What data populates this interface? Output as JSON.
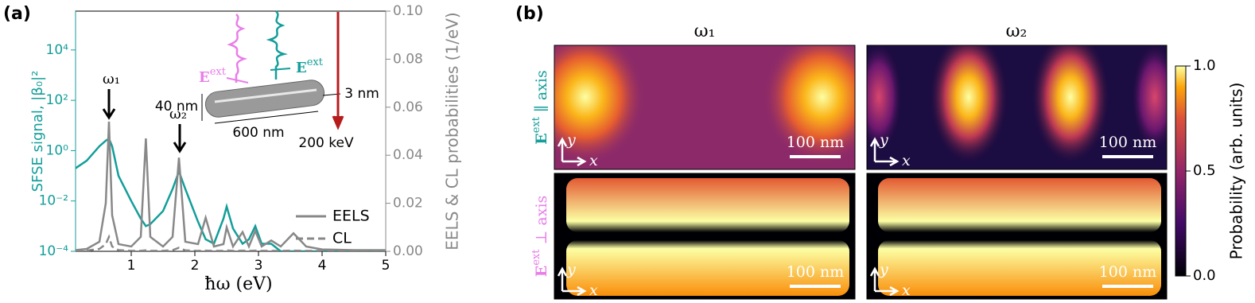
{
  "chart_data": [
    {
      "type": "line",
      "panel_label": "(a)",
      "xlabel": "ħω (eV)",
      "ylabel": "SFSE signal, |β₀|²",
      "y2label": "EELS & CL probabilities (1/eV)",
      "xlim": [
        0.125,
        5
      ],
      "xticks": [
        1,
        2,
        3,
        4,
        5
      ],
      "yscale": "log",
      "ylim": [
        0.0001,
        350000
      ],
      "yticks": [
        {
          "value": 0.0001,
          "label": "10⁻⁴"
        },
        {
          "value": 0.01,
          "label": "10⁻²"
        },
        {
          "value": 1,
          "label": "10⁰"
        },
        {
          "value": 100,
          "label": "10²"
        },
        {
          "value": 10000,
          "label": "10⁴"
        }
      ],
      "y2lim": [
        0,
        0.1
      ],
      "y2ticks": [
        {
          "value": 0,
          "label": "0.00"
        },
        {
          "value": 0.02,
          "label": "0.02"
        },
        {
          "value": 0.04,
          "label": "0.04"
        },
        {
          "value": 0.06,
          "label": "0.06"
        },
        {
          "value": 0.08,
          "label": "0.08"
        },
        {
          "value": 0.1,
          "label": "0.10"
        }
      ],
      "x": [
        0.125,
        0.3,
        0.5,
        0.6,
        0.65,
        0.7,
        0.8,
        1.0,
        1.15,
        1.23,
        1.3,
        1.5,
        1.65,
        1.75,
        1.85,
        2.05,
        2.17,
        2.3,
        2.45,
        2.5,
        2.6,
        2.75,
        2.85,
        2.95,
        3.05,
        3.2,
        3.35,
        3.55,
        3.75,
        4.0,
        4.5,
        5.0
      ],
      "series": [
        {
          "color": "#139e99",
          "axis": "y",
          "style": "solid",
          "values": [
            0.2,
            0.4,
            1.5,
            2.5,
            3,
            1.5,
            0.1,
            0.01,
            0.002,
            0.001,
            0.0012,
            0.004,
            0.03,
            0.15,
            0.03,
            0.0015,
            0.0003,
            0.0002,
            0.002,
            0.006,
            0.0008,
            0.0002,
            0.0003,
            0.001,
            0.0002,
            0.0002,
            0.0001,
            0.0001,
            0.0001,
            0.0001,
            0.0001,
            0.0001
          ]
        },
        {
          "name": "EELS",
          "color": "#888888",
          "axis": "y2",
          "style": "solid",
          "values": [
            0.0005,
            0.001,
            0.004,
            0.02,
            0.054,
            0.015,
            0.003,
            0.002,
            0.006,
            0.047,
            0.006,
            0.002,
            0.006,
            0.039,
            0.004,
            0.003,
            0.014,
            0.002,
            0.003,
            0.01,
            0.002,
            0.008,
            0.002,
            0.0085,
            0.002,
            0.0045,
            0.002,
            0.0075,
            0.002,
            0.0008,
            0.0005,
            0.0005
          ]
        },
        {
          "name": "CL",
          "color": "#888888",
          "axis": "y2",
          "style": "dashed",
          "values": [
            0.0002,
            0.0003,
            0.001,
            0.003,
            0.006,
            0.002,
            0.0005,
            0.0002,
            0.0002,
            0.0004,
            0.0002,
            0.0002,
            0.0005,
            0.0015,
            0.0004,
            0.0002,
            0.0003,
            0.0002,
            0.0002,
            0.0004,
            0.0002,
            0.0003,
            0.0002,
            0.0003,
            0.0002,
            0.0002,
            0.0002,
            0.0003,
            0.0002,
            0.0002,
            0.0002,
            0.0002
          ]
        }
      ],
      "annotations": [
        "ω₁",
        "ω₂",
        "40 nm",
        "600 nm",
        "3 nm",
        "200 keV"
      ],
      "field_label": {
        "base": "E",
        "sup": "ext"
      }
    },
    {
      "type": "heatmap",
      "panel_label": "(b)",
      "column_titles": [
        "ω₁",
        "ω₂"
      ],
      "row_labels": [
        {
          "base": "E",
          "sup": "ext",
          "text": " ∥ axis"
        },
        {
          "base": "E",
          "sup": "ext",
          "text": " ⊥ axis"
        }
      ],
      "scale_bar": "100 nm",
      "axis_names": {
        "x": "x",
        "y": "y"
      },
      "colorbar": {
        "label": "Probability (arb. units)",
        "lim": [
          0,
          1
        ],
        "ticks": [
          {
            "value": 0,
            "label": "0.0"
          },
          {
            "value": 0.5,
            "label": "0.5"
          },
          {
            "value": 1,
            "label": "1.0"
          }
        ]
      }
    }
  ]
}
